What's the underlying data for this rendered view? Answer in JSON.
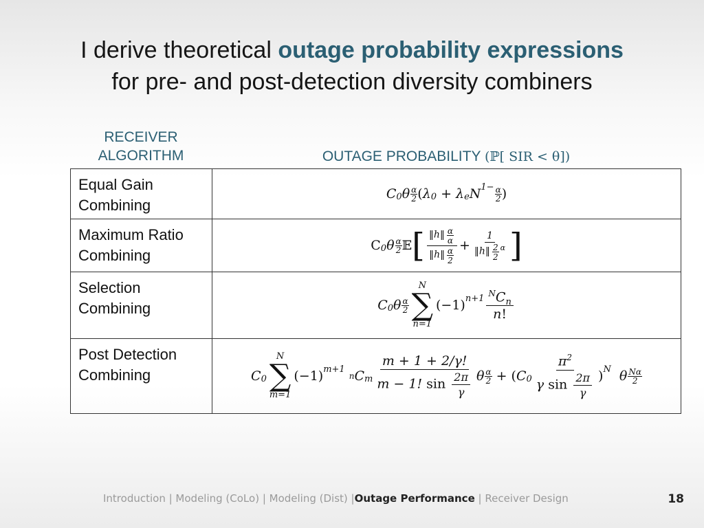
{
  "slide": {
    "title_line1_prefix": "I derive theoretical ",
    "title_line1_highlight": "outage probability expressions",
    "title_line2": "for pre- and post-detection diversity combiners",
    "highlight_color": "#2b5f73"
  },
  "table": {
    "header_algorithm_line1": "RECEIVER",
    "header_algorithm_line2": "ALGORITHM",
    "header_outage_label": "OUTAGE PROBABILITY ",
    "header_outage_math": "(ℙ[ SIR < θ])",
    "rows": [
      {
        "line1": "Equal Gain",
        "line2": "Combining"
      },
      {
        "line1": "Maximum Ratio",
        "line2": "Combining"
      },
      {
        "line1": "Selection",
        "line2": "Combining"
      },
      {
        "line1": "Post Detection",
        "line2": "Combining"
      }
    ]
  },
  "footer": {
    "nav_before": "Introduction | Modeling (CoLo) | Modeling (Dist) |",
    "nav_current": "Outage Performance",
    "nav_after": " | Receiver Design",
    "page_number": "18"
  }
}
